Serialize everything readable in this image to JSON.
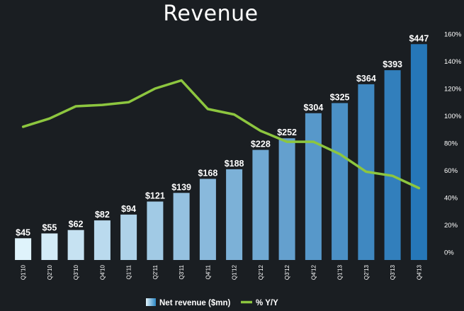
{
  "chart_data": {
    "type": "bar",
    "title": "Revenue",
    "categories": [
      "Q1'10",
      "Q2'10",
      "Q3'10",
      "Q4'10",
      "Q1'11",
      "Q2'11",
      "Q3'11",
      "Q4'11",
      "Q1'12",
      "Q2'12",
      "Q3'12",
      "Q4'12",
      "Q1'13",
      "Q2'13",
      "Q3'13",
      "Q4'13"
    ],
    "series": [
      {
        "name": "Net revenue ($mn)",
        "type": "bar",
        "values": [
          45,
          55,
          62,
          82,
          94,
          121,
          139,
          168,
          188,
          228,
          252,
          304,
          325,
          364,
          393,
          447
        ],
        "labels": [
          "$45",
          "$55",
          "$62",
          "$82",
          "$94",
          "$121",
          "$139",
          "$168",
          "$188",
          "$228",
          "$252",
          "$304",
          "$325",
          "$364",
          "$393",
          "$447"
        ],
        "color_start": "#dff3fb",
        "color_end": "#2677b8"
      },
      {
        "name": "% Y/Y",
        "type": "line",
        "axis": "right",
        "values": [
          92,
          98,
          107,
          108,
          110,
          120,
          126,
          105,
          101,
          89,
          81,
          81,
          72,
          59,
          56,
          47
        ],
        "color": "#8dc63f"
      }
    ],
    "y_left_range": [
      0,
      490
    ],
    "y_right": {
      "range": [
        0,
        160
      ],
      "ticks": [
        0,
        20,
        40,
        60,
        80,
        100,
        120,
        140,
        160
      ],
      "tick_labels": [
        "0%",
        "20%",
        "40%",
        "60%",
        "80%",
        "100%",
        "120%",
        "140%",
        "160%"
      ]
    },
    "grid": false,
    "legend_position": "bottom-center",
    "background": "#1a1e22"
  }
}
